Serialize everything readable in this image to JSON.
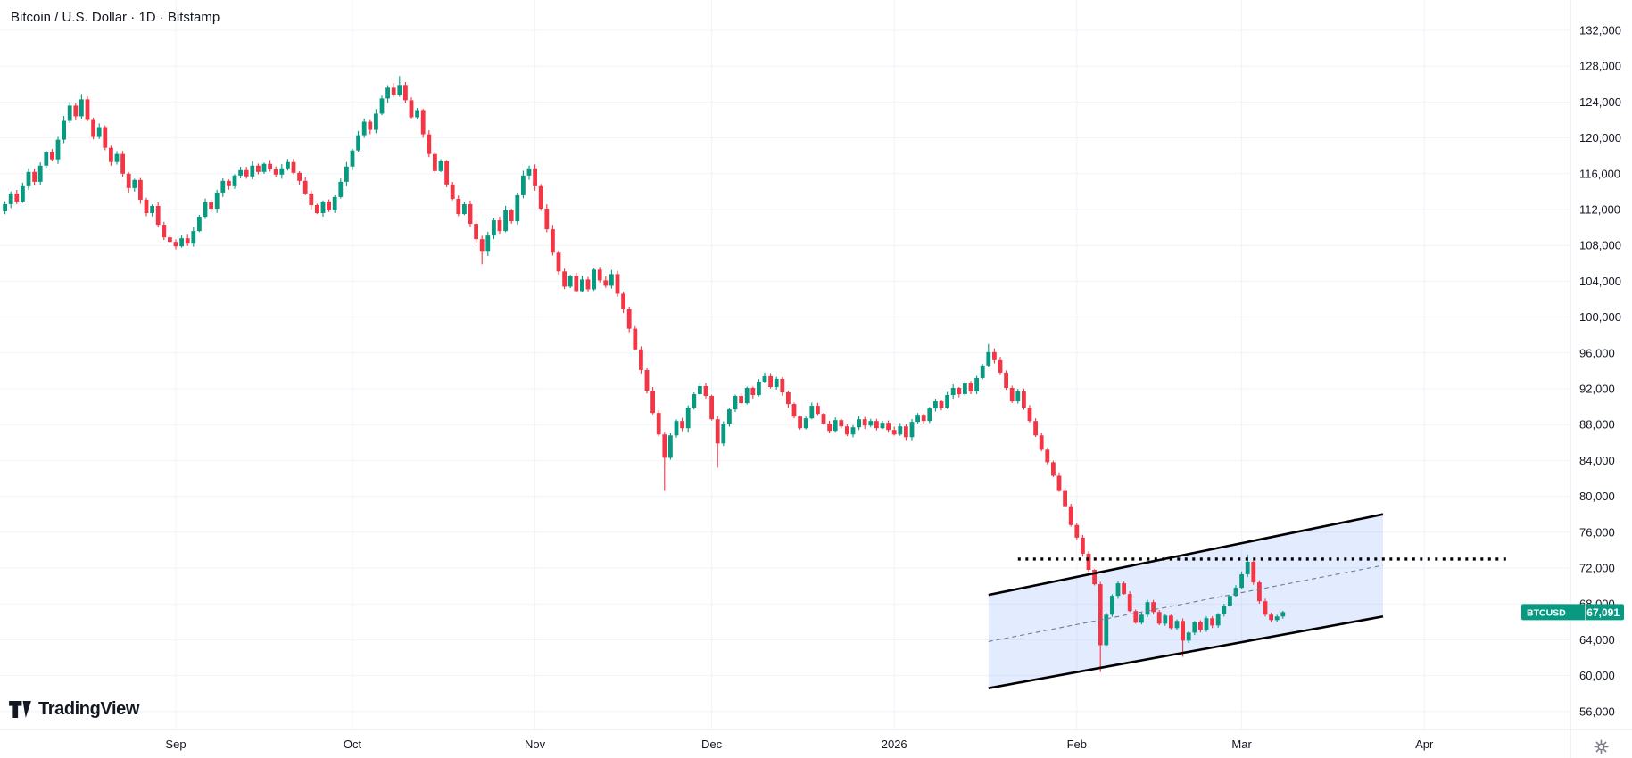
{
  "header": {
    "symbol_title": "Bitcoin / U.S. Dollar · 1D · Bitstamp"
  },
  "logo": {
    "text": "TradingView"
  },
  "colors": {
    "up": "#089981",
    "down": "#F23645",
    "axis_text": "#131722",
    "grid": "#f0f3fa",
    "separator": "#e0e3eb",
    "channel_fill": "#2962FF",
    "channel_border": "#000000",
    "channel_midline": "#6e7d92",
    "dotted_line": "#000000",
    "badge_bg": "#089981",
    "badge_text": "#ffffff"
  },
  "price_axis": {
    "labels": [
      "132,000",
      "128,000",
      "124,000",
      "120,000",
      "116,000",
      "112,000",
      "108,000",
      "104,000",
      "100,000",
      "96,000",
      "92,000",
      "88,000",
      "84,000",
      "80,000",
      "76,000",
      "72,000",
      "68,000",
      "64,000",
      "60,000",
      "56,000"
    ]
  },
  "time_axis": {
    "ticks": [
      {
        "label": "Sep",
        "day": 29
      },
      {
        "label": "Oct",
        "day": 59
      },
      {
        "label": "Nov",
        "day": 90
      },
      {
        "label": "Dec",
        "day": 120
      },
      {
        "label": "2026",
        "day": 151
      },
      {
        "label": "Feb",
        "day": 182
      },
      {
        "label": "Mar",
        "day": 210
      },
      {
        "label": "Apr",
        "day": 241
      }
    ]
  },
  "last_price_label": {
    "symbol": "BTCUSD",
    "price": "67,091",
    "value": 67091
  },
  "chart_data": {
    "type": "candlestick",
    "symbol": "BTCUSD",
    "interval": "1D",
    "exchange": "Bitstamp",
    "unit": "USD",
    "ylim": [
      56000,
      132000
    ],
    "x_axis_note": "daily candles; index 29 = Sep 1 (2025), index 151 = Jan 1 2026; index 0 = first visible candle in early Aug",
    "first_open": 111800,
    "closes": [
      112600,
      113800,
      112900,
      114600,
      116200,
      115100,
      116900,
      118400,
      117600,
      119800,
      121900,
      123600,
      122400,
      124300,
      122000,
      120100,
      121200,
      118900,
      117300,
      118200,
      116000,
      114400,
      115300,
      113100,
      111600,
      112400,
      110300,
      108900,
      108400,
      107900,
      108800,
      108200,
      109600,
      111200,
      112800,
      112100,
      113900,
      115200,
      114600,
      115800,
      116400,
      115700,
      116900,
      116200,
      117100,
      116500,
      115900,
      116600,
      117300,
      116100,
      115200,
      113800,
      112500,
      111600,
      112900,
      111900,
      113400,
      115100,
      116800,
      118600,
      120300,
      121800,
      120900,
      122700,
      124400,
      125600,
      124800,
      125900,
      124200,
      122300,
      123100,
      120400,
      118200,
      116300,
      117400,
      114800,
      113200,
      111500,
      112600,
      110400,
      108700,
      107300,
      109100,
      110800,
      109600,
      111900,
      110700,
      113600,
      115800,
      116600,
      114600,
      112100,
      109800,
      107200,
      105100,
      103400,
      104600,
      102900,
      104200,
      103100,
      105300,
      104100,
      103500,
      104800,
      102600,
      100900,
      98700,
      96400,
      94100,
      91800,
      89300,
      86900,
      84300,
      86800,
      88400,
      87600,
      89900,
      91400,
      92300,
      91200,
      88600,
      85900,
      88100,
      89700,
      91200,
      90400,
      92100,
      91300,
      92800,
      93400,
      92200,
      93100,
      91600,
      90300,
      88900,
      87600,
      88700,
      90100,
      89200,
      88100,
      87300,
      88500,
      87800,
      86900,
      87700,
      88600,
      87900,
      88400,
      87600,
      88200,
      87400,
      86900,
      87800,
      86600,
      88300,
      89100,
      88400,
      89800,
      90600,
      89900,
      91300,
      92100,
      91400,
      92600,
      91700,
      93200,
      94600,
      96100,
      95200,
      93800,
      92100,
      90600,
      91700,
      89900,
      88400,
      86800,
      85200,
      83800,
      82300,
      80600,
      78900,
      76800,
      75400,
      73600,
      71800,
      70200,
      63400,
      66800,
      68900,
      70300,
      69100,
      67200,
      65900,
      66800,
      68200,
      67100,
      65800,
      66700,
      65300,
      66100,
      63900,
      64800,
      66000,
      65100,
      66400,
      65600,
      66900,
      67800,
      68900,
      69800,
      71300,
      72700,
      70400,
      68300,
      66800,
      66200,
      66600,
      67091
    ],
    "wick_overrides": [
      {
        "i": 13,
        "high": 124900
      },
      {
        "i": 67,
        "high": 126900
      },
      {
        "i": 81,
        "low": 105900
      },
      {
        "i": 112,
        "low": 80600
      },
      {
        "i": 121,
        "low": 83200
      },
      {
        "i": 167,
        "high": 97000
      },
      {
        "i": 186,
        "low": 60400
      },
      {
        "i": 200,
        "low": 62100
      },
      {
        "i": 211,
        "high": 73500
      }
    ],
    "drawings": {
      "parallel_channel": {
        "day1": 167,
        "day2": 234,
        "top1": 69000,
        "top2": 78000,
        "bottom1": 58600,
        "bottom2": 66600,
        "midline": "dashed"
      },
      "dotted_hline": {
        "price": 73000,
        "day1": 172,
        "day2": 255
      }
    }
  }
}
